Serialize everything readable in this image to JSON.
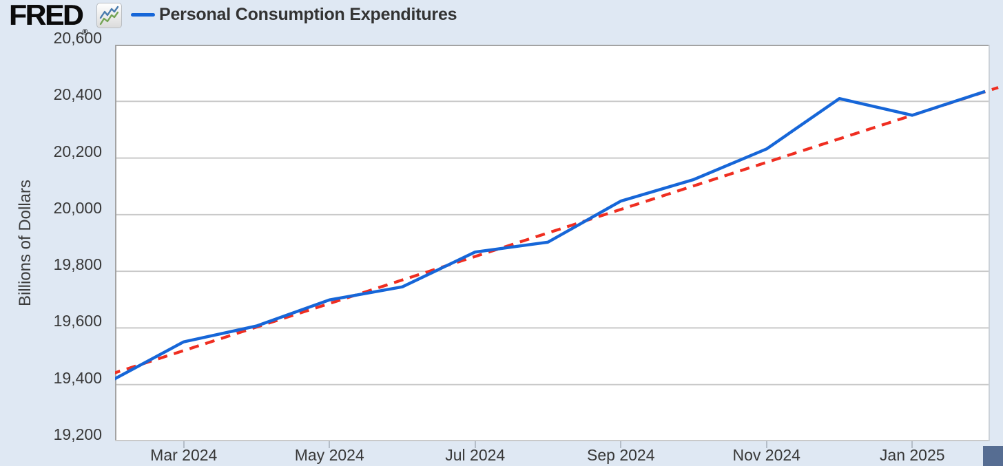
{
  "header": {
    "logo_text": "FRED",
    "registered_mark": "®",
    "legend_label": "Personal Consumption Expenditures"
  },
  "colors": {
    "background": "#dfe8f3",
    "plot_background": "#ffffff",
    "gridline": "#c9c9c9",
    "plot_border_dark": "#a3a3a3",
    "plot_border_light": "#ccd2d9",
    "series_blue": "#1666d8",
    "trend_red": "#ef2e21",
    "text": "#383838",
    "tick_mark": "#b4bdc8",
    "resize_handle": "#566d92",
    "logo_icon_blue": "#4a7cae",
    "logo_icon_green": "#74a455"
  },
  "chart_data": {
    "type": "line",
    "title": "Personal Consumption Expenditures",
    "xlabel": "",
    "ylabel": "Billions of Dollars",
    "grid": "horizontal",
    "legend_position": "top-left",
    "x": [
      "Feb 2024",
      "Mar 2024",
      "Apr 2024",
      "May 2024",
      "Jun 2024",
      "Jul 2024",
      "Aug 2024",
      "Sep 2024",
      "Oct 2024",
      "Nov 2024",
      "Dec 2024",
      "Jan 2025",
      "Feb 2025"
    ],
    "series": [
      {
        "name": "Personal Consumption Expenditures",
        "style": "solid",
        "color": "#1666d8",
        "values": [
          19413,
          19551,
          19607,
          19699,
          19745,
          19868,
          19903,
          20048,
          20124,
          20232,
          20410,
          20351,
          20435
        ]
      }
    ],
    "trend_line": {
      "name": "linear-trend",
      "style": "dashed",
      "color": "#ef2e21",
      "start": {
        "x_index": 0,
        "value": 19437
      },
      "end": {
        "x_index": 12.18,
        "value": 20449
      }
    },
    "ylim": [
      19200,
      20600
    ],
    "ytick_step": 200,
    "yticks": [
      "19,200",
      "19,400",
      "19,600",
      "19,800",
      "20,000",
      "20,200",
      "20,400",
      "20,600"
    ],
    "xticks": [
      {
        "x_index": 1,
        "label": "Mar 2024"
      },
      {
        "x_index": 3,
        "label": "May 2024"
      },
      {
        "x_index": 5,
        "label": "Jul 2024"
      },
      {
        "x_index": 7,
        "label": "Sep 2024"
      },
      {
        "x_index": 9,
        "label": "Nov 2024"
      },
      {
        "x_index": 11,
        "label": "Jan 2025"
      }
    ]
  }
}
